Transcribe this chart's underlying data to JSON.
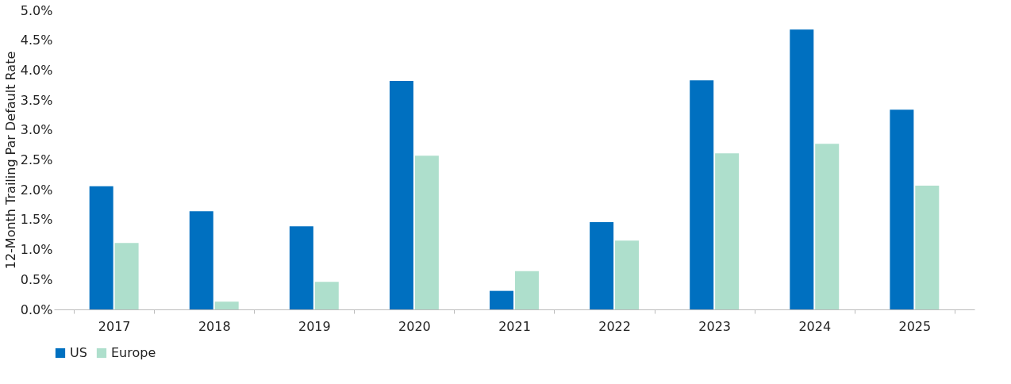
{
  "chart_data": {
    "type": "bar",
    "ylabel": "12-Month Trailing Par Default Rate",
    "categories": [
      "2017",
      "2018",
      "2019",
      "2020",
      "2021",
      "2022",
      "2023",
      "2024",
      "2025"
    ],
    "series": [
      {
        "name": "US",
        "color": "#0070c0",
        "values": [
          2.06,
          1.64,
          1.39,
          3.82,
          0.31,
          1.46,
          3.83,
          4.68,
          3.34
        ]
      },
      {
        "name": "Europe",
        "color": "#aedfcc",
        "values": [
          1.11,
          0.13,
          0.46,
          2.57,
          0.64,
          1.15,
          2.61,
          2.77,
          2.07
        ]
      }
    ],
    "ylim": [
      0,
      5
    ],
    "yticks": [
      {
        "value": 0,
        "label": "0.0%"
      },
      {
        "value": 0.5,
        "label": "0.5%"
      },
      {
        "value": 1,
        "label": "1.0%"
      },
      {
        "value": 1.5,
        "label": "1.5%"
      },
      {
        "value": 2,
        "label": "2.0%"
      },
      {
        "value": 2.5,
        "label": "2.5%"
      },
      {
        "value": 3,
        "label": "3.0%"
      },
      {
        "value": 3.5,
        "label": "3.5%"
      },
      {
        "value": 4,
        "label": "4.0%"
      },
      {
        "value": 4.5,
        "label": "4.5%"
      },
      {
        "value": 5,
        "label": "5.0%"
      }
    ],
    "grid": false,
    "legend": "bottom"
  }
}
